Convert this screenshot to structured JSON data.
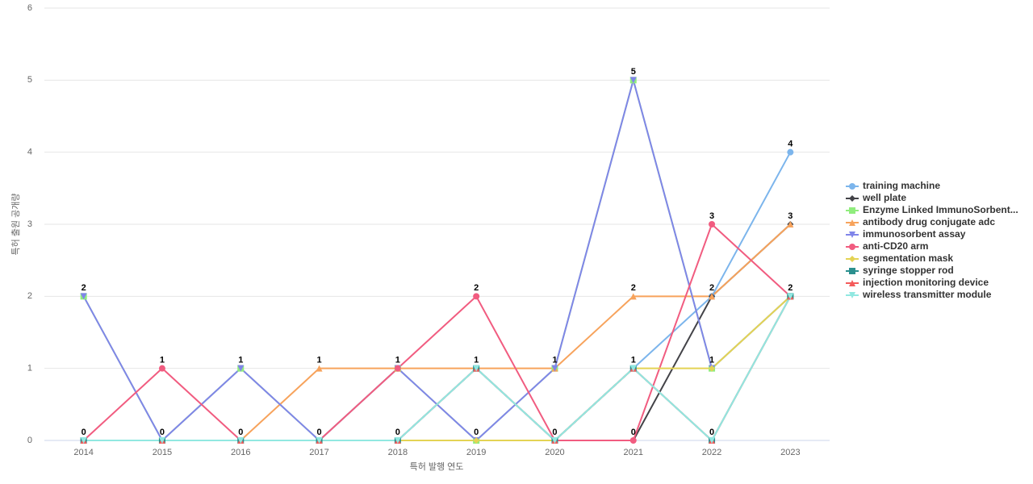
{
  "chart_data": {
    "type": "line",
    "x_label": "특허 발행 연도",
    "y_label": "특허 출원 공개량",
    "categories": [
      "2014",
      "2015",
      "2016",
      "2017",
      "2018",
      "2019",
      "2020",
      "2021",
      "2022",
      "2023"
    ],
    "ylim": [
      0,
      6
    ],
    "yticks": [
      0,
      1,
      2,
      3,
      4,
      5,
      6
    ],
    "grid": true,
    "series": [
      {
        "name": "training machine",
        "color": "#7cb5ec",
        "marker": "circle",
        "values": [
          0,
          0,
          0,
          0,
          0,
          1,
          0,
          1,
          2,
          4
        ]
      },
      {
        "name": "well plate",
        "color": "#434348",
        "marker": "diamond",
        "values": [
          0,
          0,
          0,
          0,
          0,
          0,
          0,
          0,
          2,
          3
        ]
      },
      {
        "name": "Enzyme Linked ImmunoSorbent...",
        "color": "#90ed7d",
        "marker": "square",
        "values": [
          2,
          0,
          1,
          0,
          1,
          0,
          1,
          5,
          1,
          2
        ]
      },
      {
        "name": "antibody drug conjugate adc",
        "color": "#f7a35c",
        "marker": "triangle",
        "values": [
          0,
          0,
          0,
          1,
          1,
          1,
          1,
          2,
          2,
          3
        ]
      },
      {
        "name": "immunosorbent assay",
        "color": "#8085e9",
        "marker": "triangle-down",
        "values": [
          2,
          0,
          1,
          0,
          1,
          0,
          1,
          5,
          1,
          2
        ]
      },
      {
        "name": "anti-CD20 arm",
        "color": "#f15c80",
        "marker": "circle",
        "values": [
          0,
          1,
          0,
          0,
          1,
          2,
          0,
          0,
          3,
          2
        ]
      },
      {
        "name": "segmentation mask",
        "color": "#e4d354",
        "marker": "diamond",
        "values": [
          0,
          0,
          0,
          0,
          0,
          0,
          0,
          1,
          1,
          2
        ]
      },
      {
        "name": "syringe stopper rod",
        "color": "#2b908f",
        "marker": "square",
        "values": [
          0,
          0,
          0,
          0,
          0,
          1,
          0,
          1,
          0,
          2
        ]
      },
      {
        "name": "injection monitoring device",
        "color": "#f45b5b",
        "marker": "triangle",
        "values": [
          0,
          0,
          0,
          0,
          0,
          1,
          0,
          1,
          0,
          2
        ]
      },
      {
        "name": "wireless transmitter module",
        "color": "#91e8e1",
        "marker": "triangle-down",
        "values": [
          0,
          0,
          0,
          0,
          0,
          1,
          0,
          1,
          0,
          2
        ]
      }
    ]
  }
}
